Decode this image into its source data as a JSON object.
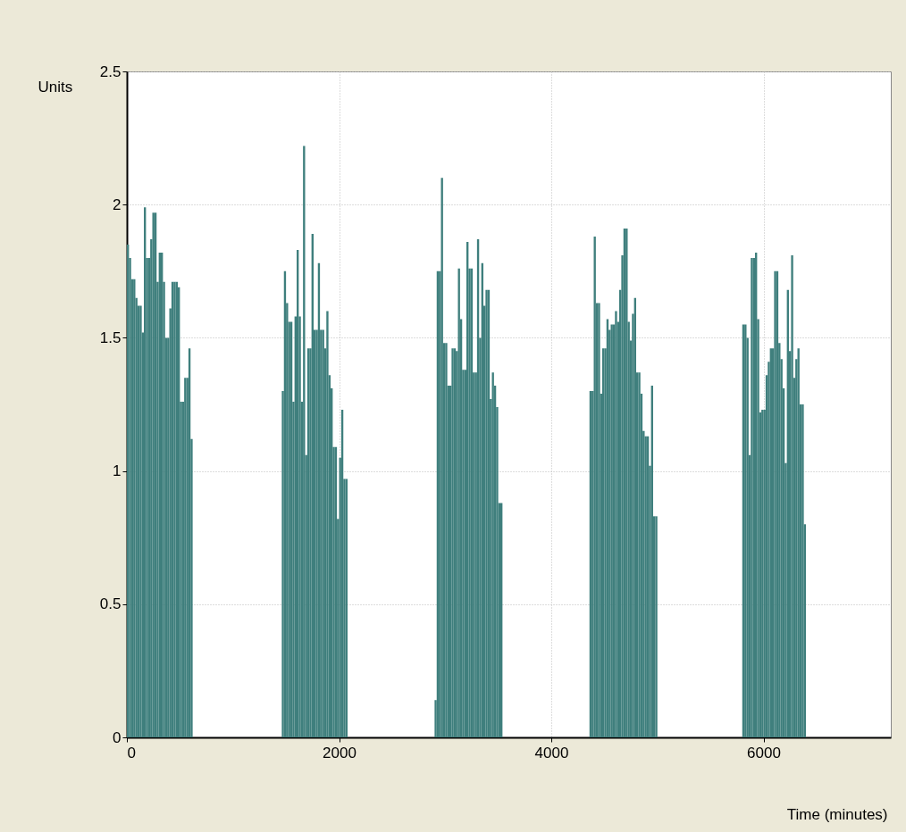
{
  "chart_data": {
    "type": "bar",
    "xlabel": "Time (minutes)",
    "ylabel": "Units",
    "x": [
      10,
      30,
      50,
      70,
      90,
      110,
      130,
      150,
      170,
      190,
      210,
      230,
      250,
      270,
      290,
      310,
      330,
      350,
      370,
      390,
      410,
      430,
      450,
      470,
      490,
      510,
      530,
      550,
      570,
      590,
      610,
      1470,
      1490,
      1510,
      1530,
      1550,
      1570,
      1590,
      1610,
      1630,
      1650,
      1670,
      1690,
      1710,
      1730,
      1750,
      1770,
      1790,
      1810,
      1830,
      1850,
      1870,
      1890,
      1910,
      1930,
      1950,
      1970,
      1990,
      2010,
      2030,
      2050,
      2070,
      2910,
      2930,
      2950,
      2970,
      2990,
      3010,
      3030,
      3050,
      3070,
      3090,
      3110,
      3130,
      3150,
      3170,
      3190,
      3210,
      3230,
      3250,
      3270,
      3290,
      3310,
      3330,
      3350,
      3370,
      3390,
      3410,
      3430,
      3450,
      3470,
      3490,
      3510,
      3530,
      4370,
      4390,
      4410,
      4430,
      4450,
      4470,
      4490,
      4510,
      4530,
      4550,
      4570,
      4590,
      4610,
      4630,
      4650,
      4670,
      4690,
      4710,
      4730,
      4750,
      4770,
      4790,
      4810,
      4830,
      4850,
      4870,
      4890,
      4910,
      4930,
      4950,
      4970,
      4990,
      5810,
      5830,
      5850,
      5870,
      5890,
      5910,
      5930,
      5950,
      5970,
      5990,
      6010,
      6030,
      6050,
      6070,
      6090,
      6110,
      6130,
      6150,
      6170,
      6190,
      6210,
      6230,
      6250,
      6270,
      6290,
      6310,
      6330,
      6350,
      6370,
      6390
    ],
    "values": [
      1.85,
      1.8,
      1.72,
      1.72,
      1.65,
      1.62,
      1.62,
      1.52,
      1.99,
      1.8,
      1.8,
      1.87,
      1.97,
      1.97,
      1.71,
      1.82,
      1.82,
      1.71,
      1.5,
      1.5,
      1.61,
      1.71,
      1.71,
      1.71,
      1.69,
      1.26,
      1.26,
      1.35,
      1.35,
      1.46,
      1.12,
      1.3,
      1.75,
      1.63,
      1.56,
      1.56,
      1.26,
      1.58,
      1.83,
      1.58,
      1.26,
      2.22,
      1.06,
      1.46,
      1.46,
      1.89,
      1.53,
      1.53,
      1.78,
      1.53,
      1.53,
      1.46,
      1.6,
      1.36,
      1.31,
      1.09,
      1.09,
      0.82,
      1.05,
      1.23,
      0.97,
      0.97,
      0.14,
      1.75,
      1.75,
      2.1,
      1.48,
      1.48,
      1.32,
      1.32,
      1.46,
      1.46,
      1.45,
      1.76,
      1.57,
      1.38,
      1.38,
      1.86,
      1.76,
      1.76,
      1.37,
      1.37,
      1.87,
      1.5,
      1.78,
      1.62,
      1.68,
      1.68,
      1.27,
      1.37,
      1.32,
      1.24,
      0.88,
      0.88,
      1.3,
      1.3,
      1.88,
      1.63,
      1.63,
      1.29,
      1.46,
      1.46,
      1.57,
      1.53,
      1.55,
      1.55,
      1.6,
      1.56,
      1.68,
      1.81,
      1.91,
      1.91,
      1.56,
      1.49,
      1.59,
      1.65,
      1.37,
      1.37,
      1.29,
      1.15,
      1.13,
      1.13,
      1.02,
      1.32,
      0.83,
      0.83,
      1.55,
      1.55,
      1.5,
      1.06,
      1.8,
      1.8,
      1.82,
      1.57,
      1.22,
      1.23,
      1.23,
      1.36,
      1.41,
      1.46,
      1.46,
      1.75,
      1.75,
      1.48,
      1.42,
      1.31,
      1.03,
      1.68,
      1.45,
      1.81,
      1.35,
      1.42,
      1.46,
      1.25,
      1.25,
      0.8
    ],
    "color": "#3f7f7d",
    "xlim": [
      0,
      7200
    ],
    "xticks": [
      0,
      2000,
      4000,
      6000
    ],
    "ylim": [
      0,
      2.5
    ],
    "yticks": [
      0,
      0.5,
      1,
      1.5,
      2,
      2.5
    ],
    "grid": true
  }
}
